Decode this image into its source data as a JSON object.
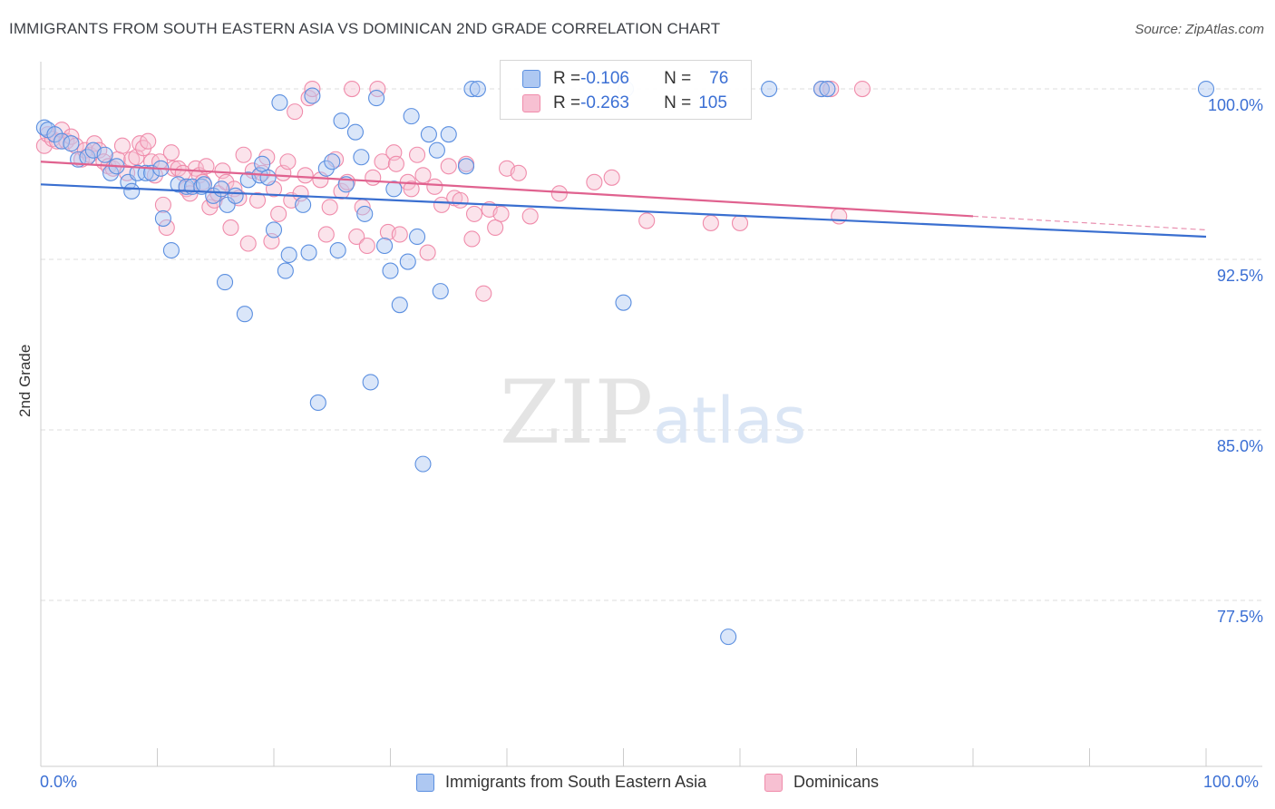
{
  "title": "IMMIGRANTS FROM SOUTH EASTERN ASIA VS DOMINICAN 2ND GRADE CORRELATION CHART",
  "source": "Source: ZipAtlas.com",
  "legend": {
    "blue": {
      "r_label": "R = ",
      "r": "-0.106",
      "n_label": "N = ",
      "n": "76"
    },
    "pink": {
      "r_label": "R = ",
      "r": "-0.263",
      "n_label": "N = ",
      "n": "105"
    }
  },
  "bottom_legend": {
    "blue": "Immigrants from South Eastern Asia",
    "pink": "Dominicans"
  },
  "x_tick_left": "0.0%",
  "x_tick_right": "100.0%",
  "colors": {
    "blue": "#5b8fe0",
    "blue_fill": "#aec8f2",
    "blue_line": "#3a6fd0",
    "pink": "#f08cab",
    "pink_fill": "#f7c0d2",
    "pink_line": "#e0628f",
    "tick_text": "#3b6fd4"
  },
  "chart_data": {
    "type": "scatter",
    "xlabel": "",
    "ylabel": "2nd Grade",
    "xlim": [
      0,
      100
    ],
    "ylim": [
      70.2,
      100.8
    ],
    "y_ticks": [
      {
        "v": 100.0,
        "label": "100.0%"
      },
      {
        "v": 92.5,
        "label": "92.5%"
      },
      {
        "v": 85.0,
        "label": "85.0%"
      },
      {
        "v": 77.5,
        "label": "77.5%"
      }
    ],
    "watermark": "ZIPatlas",
    "series": [
      {
        "name": "Immigrants from South Eastern Asia",
        "color": "blue",
        "trend": {
          "x": [
            0,
            100
          ],
          "y": [
            95.8,
            93.5
          ]
        },
        "points": [
          [
            0.3,
            98.3
          ],
          [
            0.6,
            98.2
          ],
          [
            1.2,
            98.0
          ],
          [
            1.8,
            97.7
          ],
          [
            2.6,
            97.6
          ],
          [
            3.2,
            96.9
          ],
          [
            4.0,
            97.0
          ],
          [
            4.5,
            97.3
          ],
          [
            5.5,
            97.1
          ],
          [
            6.0,
            96.3
          ],
          [
            6.5,
            96.6
          ],
          [
            7.5,
            95.9
          ],
          [
            7.8,
            95.5
          ],
          [
            8.3,
            96.3
          ],
          [
            9.0,
            96.3
          ],
          [
            9.5,
            96.3
          ],
          [
            10.3,
            96.5
          ],
          [
            10.5,
            94.3
          ],
          [
            11.2,
            92.9
          ],
          [
            11.8,
            95.8
          ],
          [
            12.5,
            95.7
          ],
          [
            13.0,
            95.7
          ],
          [
            13.8,
            95.7
          ],
          [
            14.0,
            95.8
          ],
          [
            14.8,
            95.3
          ],
          [
            15.5,
            95.6
          ],
          [
            16.0,
            94.9
          ],
          [
            15.8,
            91.5
          ],
          [
            16.7,
            95.3
          ],
          [
            17.5,
            90.1
          ],
          [
            17.8,
            96.0
          ],
          [
            18.8,
            96.2
          ],
          [
            19.0,
            96.7
          ],
          [
            19.5,
            96.1
          ],
          [
            20.0,
            93.8
          ],
          [
            20.5,
            99.4
          ],
          [
            21.0,
            92.0
          ],
          [
            21.3,
            92.7
          ],
          [
            22.5,
            94.9
          ],
          [
            23.0,
            92.8
          ],
          [
            23.3,
            99.7
          ],
          [
            23.8,
            86.2
          ],
          [
            24.5,
            96.5
          ],
          [
            25.0,
            96.8
          ],
          [
            25.5,
            92.9
          ],
          [
            25.8,
            98.6
          ],
          [
            26.2,
            95.8
          ],
          [
            27.0,
            98.1
          ],
          [
            27.5,
            97.0
          ],
          [
            27.8,
            94.5
          ],
          [
            28.3,
            87.1
          ],
          [
            28.8,
            99.6
          ],
          [
            29.5,
            93.1
          ],
          [
            30.0,
            92.0
          ],
          [
            30.3,
            95.6
          ],
          [
            30.8,
            90.5
          ],
          [
            31.5,
            92.4
          ],
          [
            31.8,
            98.8
          ],
          [
            32.3,
            93.5
          ],
          [
            32.8,
            83.5
          ],
          [
            33.3,
            98.0
          ],
          [
            34.0,
            97.3
          ],
          [
            34.3,
            91.1
          ],
          [
            35.0,
            98.0
          ],
          [
            36.5,
            96.6
          ],
          [
            37.0,
            100.0
          ],
          [
            37.5,
            100.0
          ],
          [
            50.0,
            90.6
          ],
          [
            50.2,
            100.0
          ],
          [
            59.0,
            75.9
          ],
          [
            62.5,
            100.0
          ],
          [
            67.0,
            100.0
          ],
          [
            67.5,
            100.0
          ],
          [
            100.0,
            100.0
          ]
        ]
      },
      {
        "name": "Dominicans",
        "color": "pink",
        "trend": {
          "x": [
            0,
            80
          ],
          "y": [
            96.8,
            94.4
          ]
        },
        "trend_ext": {
          "x": [
            80,
            100
          ],
          "y": [
            94.4,
            93.8
          ]
        },
        "points": [
          [
            0.3,
            97.5
          ],
          [
            0.6,
            98.0
          ],
          [
            1.0,
            97.8
          ],
          [
            1.4,
            97.7
          ],
          [
            1.8,
            98.2
          ],
          [
            2.2,
            97.7
          ],
          [
            2.6,
            97.9
          ],
          [
            3.0,
            97.5
          ],
          [
            3.5,
            96.9
          ],
          [
            3.8,
            97.3
          ],
          [
            4.2,
            97.1
          ],
          [
            4.6,
            97.6
          ],
          [
            5.0,
            97.3
          ],
          [
            5.4,
            96.8
          ],
          [
            5.8,
            96.6
          ],
          [
            6.2,
            96.5
          ],
          [
            6.6,
            96.9
          ],
          [
            7.0,
            97.5
          ],
          [
            7.4,
            96.3
          ],
          [
            7.8,
            96.9
          ],
          [
            8.2,
            97.0
          ],
          [
            8.5,
            97.6
          ],
          [
            8.8,
            97.4
          ],
          [
            9.2,
            97.7
          ],
          [
            9.5,
            96.8
          ],
          [
            9.8,
            96.2
          ],
          [
            10.2,
            96.8
          ],
          [
            10.5,
            94.9
          ],
          [
            10.8,
            93.9
          ],
          [
            11.2,
            97.2
          ],
          [
            11.4,
            96.5
          ],
          [
            11.8,
            96.5
          ],
          [
            12.2,
            96.3
          ],
          [
            12.5,
            95.6
          ],
          [
            12.8,
            95.4
          ],
          [
            13.3,
            96.5
          ],
          [
            13.6,
            96.2
          ],
          [
            13.9,
            95.9
          ],
          [
            14.2,
            96.6
          ],
          [
            14.5,
            94.8
          ],
          [
            14.9,
            95.1
          ],
          [
            15.2,
            95.4
          ],
          [
            15.6,
            96.4
          ],
          [
            15.9,
            95.9
          ],
          [
            16.3,
            93.9
          ],
          [
            16.6,
            95.6
          ],
          [
            17.0,
            95.2
          ],
          [
            17.4,
            97.1
          ],
          [
            17.8,
            93.2
          ],
          [
            18.2,
            96.4
          ],
          [
            18.6,
            95.1
          ],
          [
            19.0,
            96.3
          ],
          [
            19.4,
            97.0
          ],
          [
            19.8,
            93.3
          ],
          [
            20.0,
            95.6
          ],
          [
            20.4,
            94.5
          ],
          [
            20.8,
            96.3
          ],
          [
            21.2,
            96.8
          ],
          [
            21.5,
            95.1
          ],
          [
            21.8,
            99.0
          ],
          [
            22.3,
            95.4
          ],
          [
            22.7,
            96.2
          ],
          [
            23.0,
            99.6
          ],
          [
            23.3,
            100.0
          ],
          [
            24.0,
            96.0
          ],
          [
            24.5,
            93.6
          ],
          [
            24.8,
            94.8
          ],
          [
            25.3,
            96.9
          ],
          [
            25.8,
            95.5
          ],
          [
            26.3,
            95.9
          ],
          [
            26.7,
            100.0
          ],
          [
            27.1,
            93.5
          ],
          [
            27.6,
            94.8
          ],
          [
            28.0,
            93.1
          ],
          [
            28.5,
            96.1
          ],
          [
            28.9,
            100.0
          ],
          [
            29.3,
            96.8
          ],
          [
            29.8,
            93.7
          ],
          [
            30.3,
            97.2
          ],
          [
            30.5,
            96.7
          ],
          [
            30.8,
            93.6
          ],
          [
            31.5,
            95.9
          ],
          [
            31.8,
            95.6
          ],
          [
            32.3,
            97.1
          ],
          [
            32.8,
            96.2
          ],
          [
            33.2,
            92.8
          ],
          [
            33.8,
            95.7
          ],
          [
            34.4,
            94.9
          ],
          [
            35.0,
            96.6
          ],
          [
            35.5,
            95.2
          ],
          [
            36.0,
            95.1
          ],
          [
            36.5,
            96.7
          ],
          [
            37.0,
            93.4
          ],
          [
            37.2,
            94.5
          ],
          [
            38.0,
            91.0
          ],
          [
            38.5,
            94.7
          ],
          [
            39.0,
            93.9
          ],
          [
            39.5,
            94.5
          ],
          [
            40.0,
            96.5
          ],
          [
            41.0,
            96.3
          ],
          [
            42.0,
            94.4
          ],
          [
            44.5,
            95.4
          ],
          [
            47.5,
            95.9
          ],
          [
            49.0,
            96.1
          ],
          [
            52.0,
            94.2
          ],
          [
            57.5,
            94.1
          ],
          [
            60.0,
            94.1
          ],
          [
            67.0,
            100.0
          ],
          [
            67.8,
            100.0
          ],
          [
            68.5,
            94.4
          ],
          [
            70.5,
            100.0
          ]
        ]
      }
    ]
  }
}
